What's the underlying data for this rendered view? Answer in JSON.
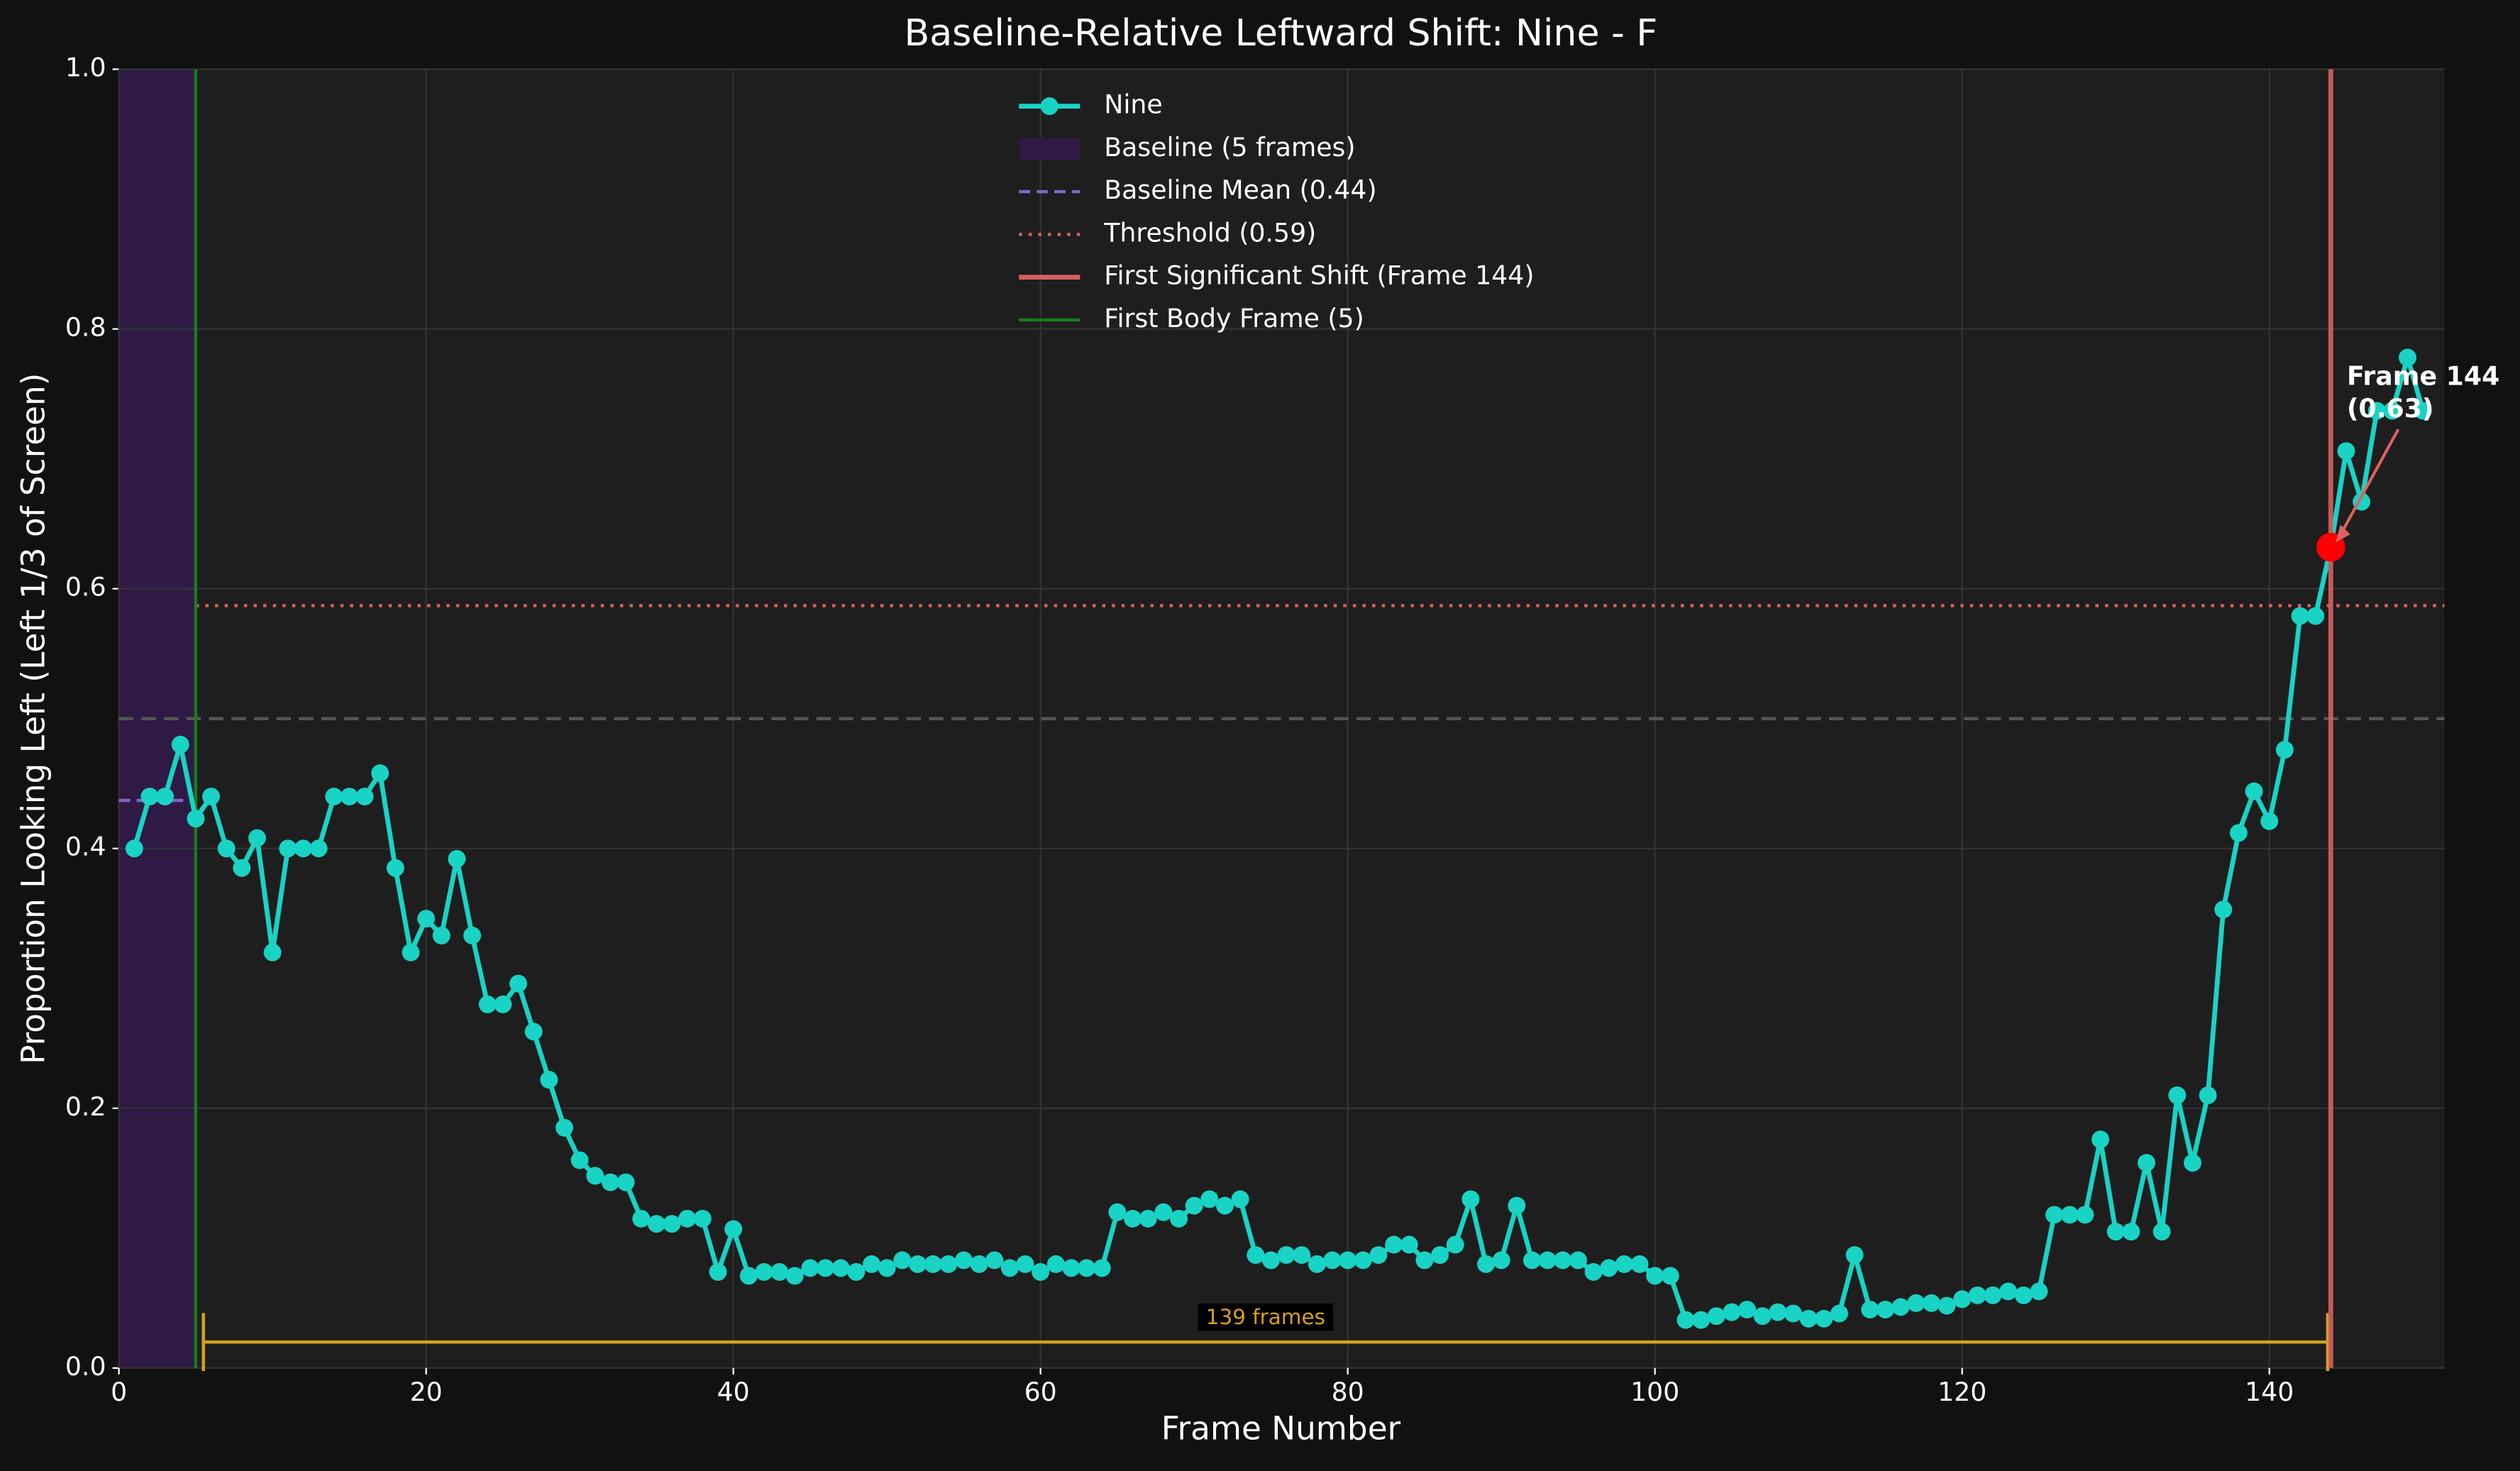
{
  "chart_data": {
    "type": "line",
    "title": "Baseline-Relative Leftward Shift: Nine - F",
    "x_label": "Frame Number",
    "y_label": "Proportion Looking Left (Left 1/3 of Screen)",
    "x": [
      1,
      2,
      3,
      4,
      5,
      6,
      7,
      8,
      9,
      10,
      11,
      12,
      13,
      14,
      15,
      16,
      17,
      18,
      19,
      20,
      21,
      22,
      23,
      24,
      25,
      26,
      27,
      28,
      29,
      30,
      31,
      32,
      33,
      34,
      35,
      36,
      37,
      38,
      39,
      40,
      41,
      42,
      43,
      44,
      45,
      46,
      47,
      48,
      49,
      50,
      51,
      52,
      53,
      54,
      55,
      56,
      57,
      58,
      59,
      60,
      61,
      62,
      63,
      64,
      65,
      66,
      67,
      68,
      69,
      70,
      71,
      72,
      73,
      74,
      75,
      76,
      77,
      78,
      79,
      80,
      81,
      82,
      83,
      84,
      85,
      86,
      87,
      88,
      89,
      90,
      91,
      92,
      93,
      94,
      95,
      96,
      97,
      98,
      99,
      100,
      101,
      102,
      103,
      104,
      105,
      106,
      107,
      108,
      109,
      110,
      111,
      112,
      113,
      114,
      115,
      116,
      117,
      118,
      119,
      120,
      121,
      122,
      123,
      124,
      125,
      126,
      127,
      128,
      129,
      130,
      131,
      132,
      133,
      134,
      135,
      136,
      137,
      138,
      139,
      140,
      141,
      142,
      143,
      144,
      145,
      146,
      147,
      148,
      149,
      150
    ],
    "series": [
      {
        "name": "Nine",
        "color": "#19d3c5",
        "values": [
          0.4,
          0.44,
          0.44,
          0.48,
          0.423,
          0.44,
          0.4,
          0.385,
          0.408,
          0.32,
          0.4,
          0.4,
          0.4,
          0.44,
          0.44,
          0.44,
          0.458,
          0.385,
          0.32,
          0.346,
          0.333,
          0.392,
          0.333,
          0.28,
          0.28,
          0.296,
          0.259,
          0.222,
          0.185,
          0.16,
          0.148,
          0.143,
          0.143,
          0.115,
          0.111,
          0.111,
          0.115,
          0.115,
          0.074,
          0.107,
          0.071,
          0.074,
          0.074,
          0.071,
          0.077,
          0.077,
          0.077,
          0.074,
          0.08,
          0.077,
          0.083,
          0.08,
          0.08,
          0.08,
          0.083,
          0.08,
          0.083,
          0.077,
          0.08,
          0.074,
          0.08,
          0.077,
          0.077,
          0.077,
          0.12,
          0.115,
          0.115,
          0.12,
          0.115,
          0.125,
          0.13,
          0.125,
          0.13,
          0.087,
          0.083,
          0.087,
          0.087,
          0.08,
          0.083,
          0.083,
          0.083,
          0.087,
          0.095,
          0.095,
          0.083,
          0.087,
          0.095,
          0.13,
          0.08,
          0.083,
          0.125,
          0.083,
          0.083,
          0.083,
          0.083,
          0.074,
          0.077,
          0.08,
          0.08,
          0.071,
          0.071,
          0.037,
          0.037,
          0.04,
          0.043,
          0.045,
          0.04,
          0.043,
          0.042,
          0.038,
          0.038,
          0.042,
          0.087,
          0.045,
          0.045,
          0.047,
          0.05,
          0.05,
          0.048,
          0.053,
          0.056,
          0.056,
          0.059,
          0.056,
          0.059,
          0.118,
          0.118,
          0.118,
          0.176,
          0.105,
          0.105,
          0.158,
          0.105,
          0.21,
          0.158,
          0.21,
          0.353,
          0.412,
          0.444,
          0.421,
          0.476,
          0.579,
          0.579,
          0.632,
          0.706,
          0.667,
          0.737,
          0.737,
          0.778,
          0.737
        ]
      }
    ],
    "xlim": [
      0,
      151.4
    ],
    "ylim": [
      0,
      1.0
    ],
    "xticks": [
      0,
      20,
      40,
      60,
      80,
      100,
      120,
      140
    ],
    "yticks": [
      {
        "value": 0,
        "label": "0.0"
      },
      {
        "value": 0.2,
        "label": "0.2"
      },
      {
        "value": 0.4,
        "label": "0.4"
      },
      {
        "value": 0.6,
        "label": "0.6"
      },
      {
        "value": 0.8,
        "label": "0.8"
      },
      {
        "value": 1.0,
        "label": "1.0"
      }
    ],
    "grid": true,
    "legend_loc": "upper center",
    "baseline_span": {
      "x": [
        0,
        5
      ],
      "color": "#2e1a44"
    },
    "baseline_mean": {
      "value": 0.437,
      "x": [
        0,
        4.5
      ],
      "color": "#7e66c8"
    },
    "threshold": {
      "value": 0.587,
      "color": "#d65f5f"
    },
    "reference_line": {
      "value": 0.5,
      "color": "#555555"
    },
    "shift_frame": {
      "value": 144,
      "color": "#d65f5f"
    },
    "first_body_frame": {
      "value": 5,
      "color": "#1a7a1a"
    },
    "shift_point": {
      "x": 144,
      "y": 0.632,
      "color": "#ff0000"
    },
    "annotation": {
      "lines": [
        "Frame 144",
        "(0.63)"
      ],
      "color": "#e06060"
    },
    "span": {
      "start": 5.5,
      "end": 143.8,
      "y": 0.02,
      "label": "139 frames",
      "color": "#d4a020"
    },
    "legend": [
      {
        "label": "Baseline (5 frames)",
        "style": "patch",
        "color": "#2e1a44"
      },
      {
        "label": "Baseline Mean (0.44)",
        "style": "dashed",
        "color": "#7e66c8"
      },
      {
        "label": "Threshold (0.59)",
        "style": "dotted",
        "color": "#d65f5f"
      },
      {
        "label": "First Significant Shift (Frame 144)",
        "style": "solid",
        "color": "#d65f5f"
      },
      {
        "label": "First Body Frame (5)",
        "style": "solid",
        "color": "#1a7a1a"
      }
    ]
  }
}
